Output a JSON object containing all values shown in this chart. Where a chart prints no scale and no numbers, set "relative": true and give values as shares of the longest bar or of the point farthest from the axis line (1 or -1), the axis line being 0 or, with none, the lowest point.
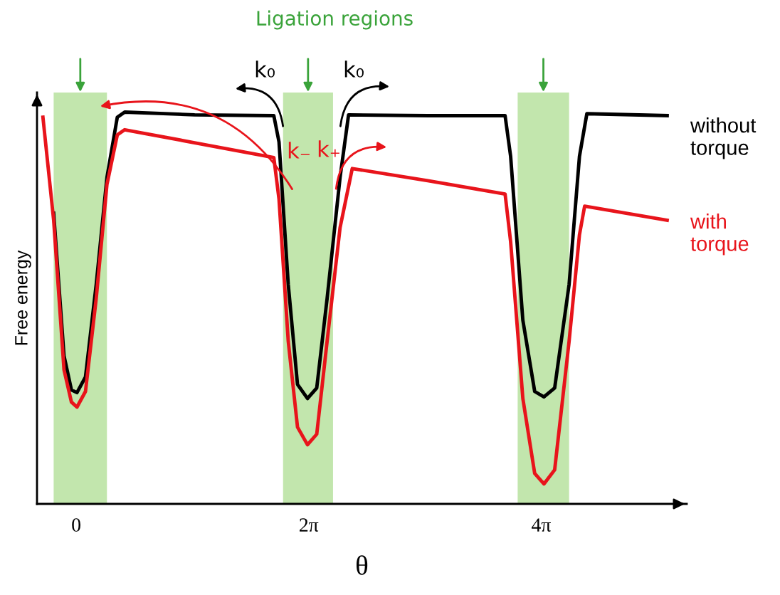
{
  "chart_data": {
    "type": "line",
    "relative": true,
    "xlabel": "θ",
    "ylabel": "Free energy",
    "xlim": [
      -1.06,
      16.5
    ],
    "xticks": [
      {
        "value": 0,
        "label": "0"
      },
      {
        "value": 6.283,
        "label": "2π"
      },
      {
        "value": 12.566,
        "label": "4π"
      }
    ],
    "tick_labels": "x",
    "grid": false,
    "marker": "none",
    "line_style": "solid",
    "series": [
      {
        "name": "without torque",
        "color": "#000000",
        "x": [
          -0.61,
          -0.33,
          -0.13,
          0.02,
          0.25,
          0.54,
          0.83,
          1.11,
          1.31,
          3.2,
          5.34,
          5.48,
          5.73,
          5.98,
          6.25,
          6.5,
          6.78,
          7.13,
          7.36,
          9.5,
          11.59,
          11.74,
          12.07,
          12.39,
          12.64,
          12.93,
          13.32,
          13.6,
          13.8,
          15.97
        ],
        "values": [
          0.742,
          0.378,
          0.291,
          0.284,
          0.324,
          0.56,
          0.833,
          0.987,
          1.0,
          0.993,
          0.991,
          0.924,
          0.56,
          0.305,
          0.269,
          0.296,
          0.524,
          0.833,
          0.993,
          0.991,
          0.991,
          0.887,
          0.469,
          0.287,
          0.273,
          0.296,
          0.56,
          0.887,
          0.996,
          0.991
        ]
      },
      {
        "name": "with torque",
        "color": "#e8141b",
        "x": [
          -0.9,
          -0.61,
          -0.33,
          -0.13,
          0.02,
          0.25,
          0.54,
          0.83,
          1.11,
          1.31,
          3.3,
          5.34,
          5.48,
          5.73,
          5.98,
          6.25,
          6.5,
          6.78,
          7.13,
          7.46,
          9.5,
          11.59,
          11.74,
          12.07,
          12.39,
          12.64,
          12.93,
          13.32,
          13.6,
          13.74,
          15.97
        ],
        "values": [
          0.987,
          0.724,
          0.342,
          0.26,
          0.247,
          0.287,
          0.524,
          0.815,
          0.942,
          0.955,
          0.92,
          0.884,
          0.778,
          0.415,
          0.196,
          0.151,
          0.178,
          0.415,
          0.705,
          0.856,
          0.825,
          0.791,
          0.669,
          0.269,
          0.078,
          0.051,
          0.087,
          0.415,
          0.687,
          0.76,
          0.724
        ]
      }
    ],
    "bands": [
      {
        "axis": "x",
        "from": -0.61,
        "to": 0.83,
        "color": "#8fd16a"
      },
      {
        "axis": "x",
        "from": 5.59,
        "to": 6.94,
        "color": "#8fd16a"
      },
      {
        "axis": "x",
        "from": 11.93,
        "to": 13.32,
        "color": "#8fd16a"
      }
    ],
    "annotations": [
      "Ligation regions",
      "k₀",
      "k₀",
      "k₋",
      "k₊"
    ]
  }
}
